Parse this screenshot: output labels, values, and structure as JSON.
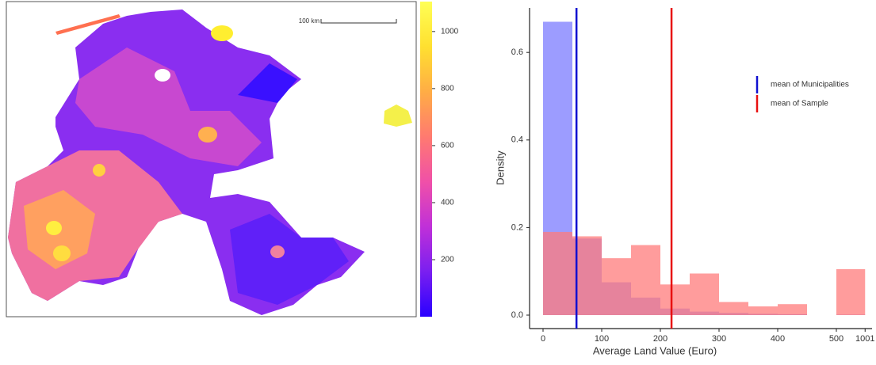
{
  "chart_data": [
    {
      "type": "map",
      "scale_bar": "100 km",
      "colorbar": {
        "lim": [
          0,
          1105
        ],
        "ticks": [
          200,
          400,
          600,
          800,
          1000
        ],
        "colors": [
          "#2a00ff",
          "#7a1ff0",
          "#c030d8",
          "#f050a8",
          "#ff7a70",
          "#ffad45",
          "#ffe030",
          "#ffff55"
        ]
      }
    },
    {
      "type": "histogram",
      "xlabel": "Average Land Value (Euro)",
      "ylabel": "Density",
      "bins": [
        0,
        50,
        100,
        150,
        200,
        250,
        300,
        350,
        400,
        450,
        500,
        1001
      ],
      "series": [
        {
          "name": "Municipalities",
          "color": "#7b7bff",
          "values": [
            0.67,
            0.175,
            0.075,
            0.04,
            0.015,
            0.008,
            0.005,
            0.003,
            0.002,
            0,
            0.001
          ]
        },
        {
          "name": "Sample",
          "color": "#ff7b7b",
          "values": [
            0.19,
            0.18,
            0.13,
            0.16,
            0.07,
            0.095,
            0.03,
            0.02,
            0.025,
            0,
            0.105
          ]
        }
      ],
      "vlines": [
        {
          "name": "mean of Municipalities",
          "color": "#1010d0",
          "value": 57
        },
        {
          "name": "mean of Sample",
          "color": "#e81010",
          "value": 219
        }
      ],
      "xlim": [
        -20,
        1001
      ],
      "xticks": [
        0,
        100,
        200,
        300,
        400,
        500,
        1001
      ],
      "ylim": [
        -0.03,
        0.7
      ],
      "yticks": [
        {
          "value": 0,
          "label": "0.0"
        },
        0.2,
        0.4,
        0.6
      ]
    }
  ]
}
